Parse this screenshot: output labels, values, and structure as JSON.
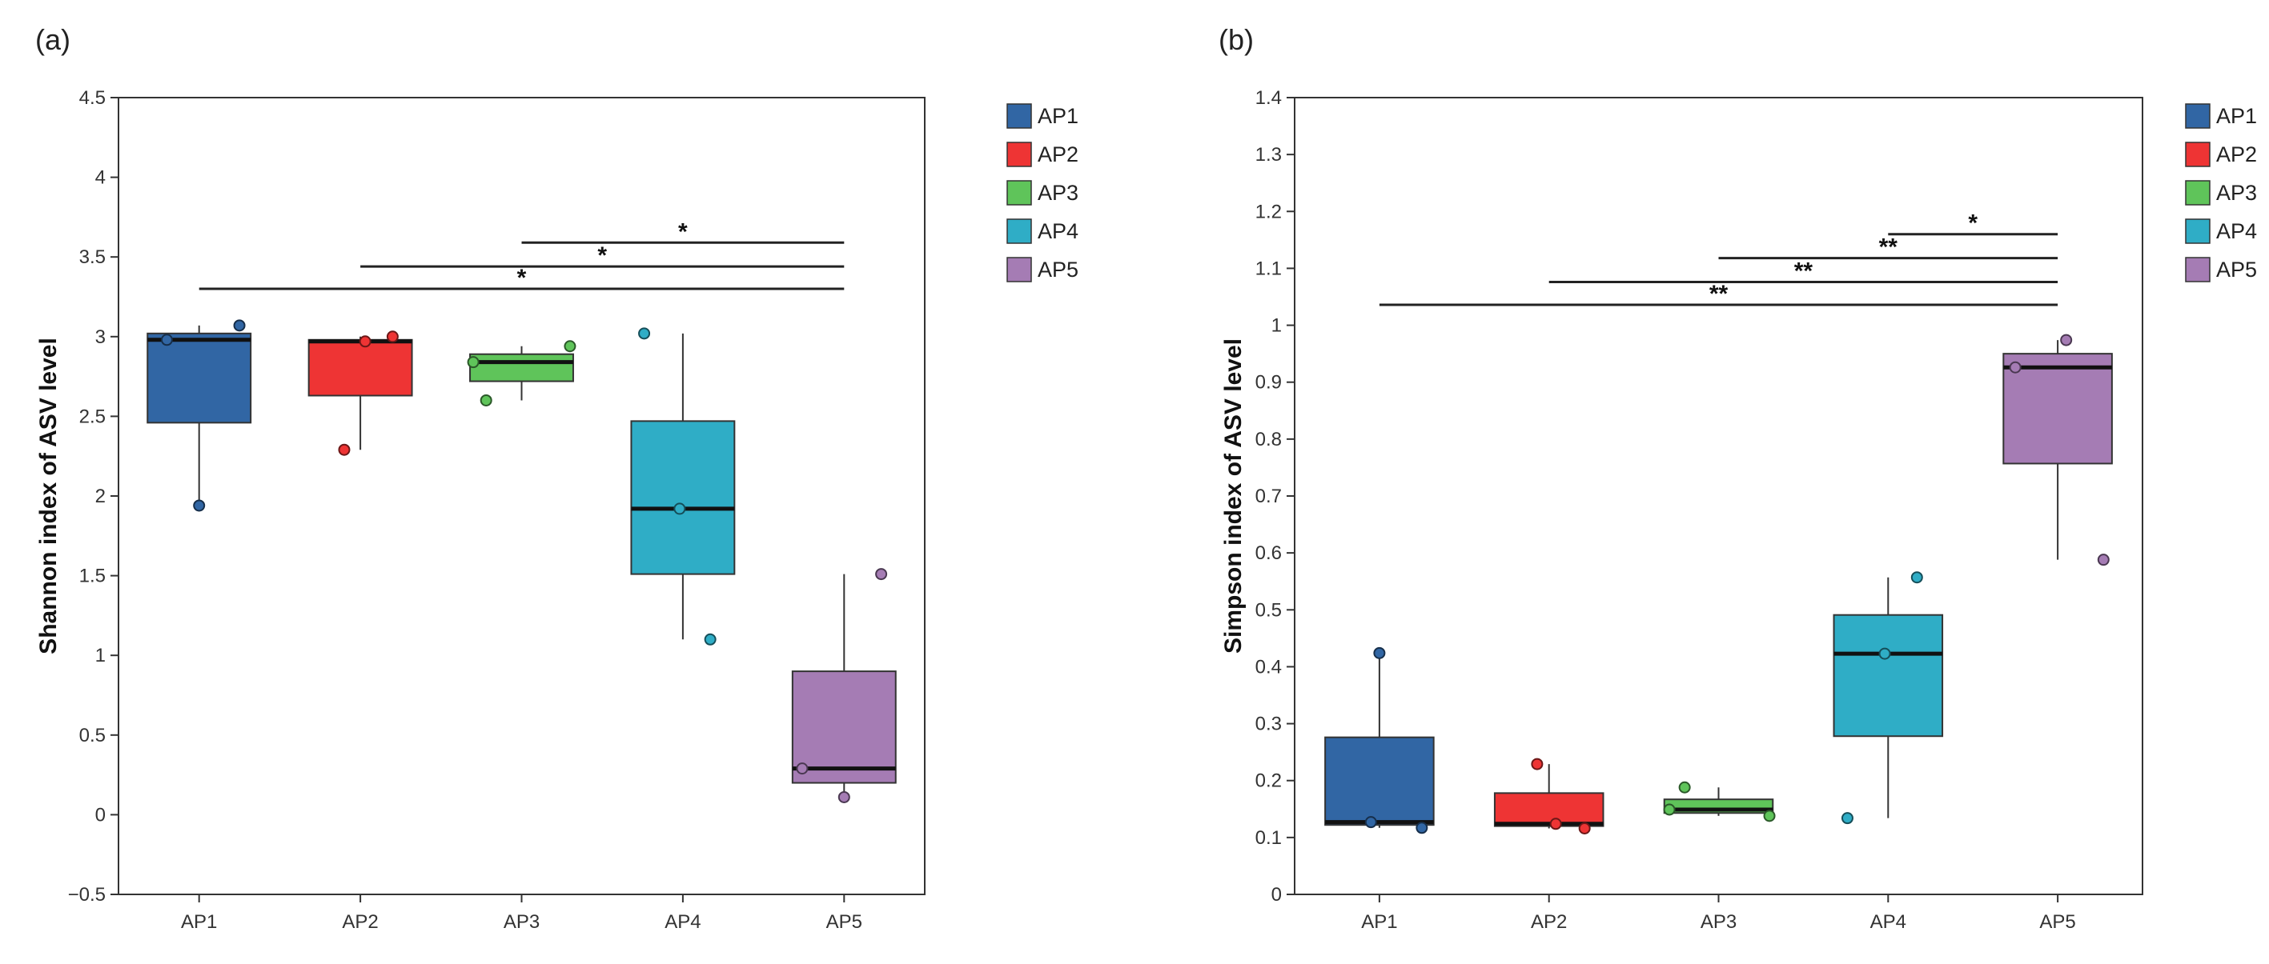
{
  "colors": {
    "AP1": "#3166a4",
    "AP2": "#ee3434",
    "AP3": "#5fc45a",
    "AP4": "#2fadc6",
    "AP5": "#a57cb4"
  },
  "chart_data": [
    {
      "panel_label": "(a)",
      "type": "box",
      "title": "",
      "xlabel": "",
      "ylabel": "Shannon index of ASV level",
      "categories": [
        "AP1",
        "AP2",
        "AP3",
        "AP4",
        "AP5"
      ],
      "ylim": [
        -0.5,
        4.5
      ],
      "yticks": [
        -0.5,
        0,
        0.5,
        1,
        1.5,
        2,
        2.5,
        3,
        3.5,
        4,
        4.5
      ],
      "ytick_labels": [
        "−0.5",
        "0",
        "0.5",
        "1",
        "1.5",
        "2",
        "2.5",
        "3",
        "3.5",
        "4",
        "4.5"
      ],
      "legend": [
        "AP1",
        "AP2",
        "AP3",
        "AP4",
        "AP5"
      ],
      "legend_position": "right",
      "boxes": [
        {
          "name": "AP1",
          "whisker_low": 1.94,
          "q1": 2.46,
          "median": 2.98,
          "q3": 3.02,
          "whisker_high": 3.07,
          "points": [
            {
              "value": 2.98,
              "offset": -0.2
            },
            {
              "value": 3.07,
              "offset": 0.25
            },
            {
              "value": 1.94,
              "offset": 0.0
            }
          ]
        },
        {
          "name": "AP2",
          "whisker_low": 2.29,
          "q1": 2.63,
          "median": 2.97,
          "q3": 2.98,
          "whisker_high": 3.0,
          "points": [
            {
              "value": 2.97,
              "offset": 0.03
            },
            {
              "value": 3.0,
              "offset": 0.2
            },
            {
              "value": 2.29,
              "offset": -0.1
            }
          ]
        },
        {
          "name": "AP3",
          "whisker_low": 2.6,
          "q1": 2.72,
          "median": 2.84,
          "q3": 2.89,
          "whisker_high": 2.94,
          "points": [
            {
              "value": 2.84,
              "offset": -0.3
            },
            {
              "value": 2.94,
              "offset": 0.3
            },
            {
              "value": 2.6,
              "offset": -0.22
            }
          ]
        },
        {
          "name": "AP4",
          "whisker_low": 1.1,
          "q1": 1.51,
          "median": 1.92,
          "q3": 2.47,
          "whisker_high": 3.02,
          "points": [
            {
              "value": 1.92,
              "offset": -0.02
            },
            {
              "value": 3.02,
              "offset": -0.24
            },
            {
              "value": 1.1,
              "offset": 0.17
            }
          ]
        },
        {
          "name": "AP5",
          "whisker_low": 0.11,
          "q1": 0.2,
          "median": 0.29,
          "q3": 0.9,
          "whisker_high": 1.51,
          "points": [
            {
              "value": 0.29,
              "offset": -0.26
            },
            {
              "value": 1.51,
              "offset": 0.23
            },
            {
              "value": 0.11,
              "offset": 0.0
            }
          ]
        }
      ],
      "significance": [
        {
          "from": "AP3",
          "to": "AP5",
          "y": 3.59,
          "label": "*"
        },
        {
          "from": "AP2",
          "to": "AP5",
          "y": 3.44,
          "label": "*"
        },
        {
          "from": "AP1",
          "to": "AP5",
          "y": 3.3,
          "label": "*"
        }
      ]
    },
    {
      "panel_label": "(b)",
      "type": "box",
      "title": "",
      "xlabel": "",
      "ylabel": "Simpson index of ASV level",
      "categories": [
        "AP1",
        "AP2",
        "AP3",
        "AP4",
        "AP5"
      ],
      "ylim": [
        0,
        1.4
      ],
      "yticks": [
        0,
        0.1,
        0.2,
        0.3,
        0.4,
        0.5,
        0.6,
        0.7,
        0.8,
        0.9,
        1,
        1.1,
        1.2,
        1.3,
        1.4
      ],
      "ytick_labels": [
        "0",
        "0.1",
        "0.2",
        "0.3",
        "0.4",
        "0.5",
        "0.6",
        "0.7",
        "0.8",
        "0.9",
        "1",
        "1.1",
        "1.2",
        "1.3",
        "1.4"
      ],
      "legend": [
        "AP1",
        "AP2",
        "AP3",
        "AP4",
        "AP5"
      ],
      "legend_position": "right",
      "boxes": [
        {
          "name": "AP1",
          "whisker_low": 0.117,
          "q1": 0.122,
          "median": 0.127,
          "q3": 0.276,
          "whisker_high": 0.424,
          "points": [
            {
              "value": 0.127,
              "offset": -0.05
            },
            {
              "value": 0.424,
              "offset": 0.0
            },
            {
              "value": 0.117,
              "offset": 0.25
            }
          ]
        },
        {
          "name": "AP2",
          "whisker_low": 0.116,
          "q1": 0.12,
          "median": 0.124,
          "q3": 0.178,
          "whisker_high": 0.229,
          "points": [
            {
              "value": 0.124,
              "offset": 0.04
            },
            {
              "value": 0.229,
              "offset": -0.07
            },
            {
              "value": 0.116,
              "offset": 0.21
            }
          ]
        },
        {
          "name": "AP3",
          "whisker_low": 0.138,
          "q1": 0.143,
          "median": 0.149,
          "q3": 0.167,
          "whisker_high": 0.188,
          "points": [
            {
              "value": 0.149,
              "offset": -0.29
            },
            {
              "value": 0.188,
              "offset": -0.2
            },
            {
              "value": 0.138,
              "offset": 0.3
            }
          ]
        },
        {
          "name": "AP4",
          "whisker_low": 0.134,
          "q1": 0.278,
          "median": 0.423,
          "q3": 0.491,
          "whisker_high": 0.557,
          "points": [
            {
              "value": 0.423,
              "offset": -0.02
            },
            {
              "value": 0.557,
              "offset": 0.17
            },
            {
              "value": 0.134,
              "offset": -0.24
            }
          ]
        },
        {
          "name": "AP5",
          "whisker_low": 0.588,
          "q1": 0.757,
          "median": 0.926,
          "q3": 0.95,
          "whisker_high": 0.974,
          "points": [
            {
              "value": 0.926,
              "offset": -0.25
            },
            {
              "value": 0.974,
              "offset": 0.05
            },
            {
              "value": 0.588,
              "offset": 0.27
            }
          ]
        }
      ],
      "significance": [
        {
          "from": "AP4",
          "to": "AP5",
          "y": 1.16,
          "label": "*"
        },
        {
          "from": "AP3",
          "to": "AP5",
          "y": 1.118,
          "label": "**"
        },
        {
          "from": "AP2",
          "to": "AP5",
          "y": 1.076,
          "label": "**"
        },
        {
          "from": "AP1",
          "to": "AP5",
          "y": 1.036,
          "label": "**"
        }
      ]
    }
  ]
}
